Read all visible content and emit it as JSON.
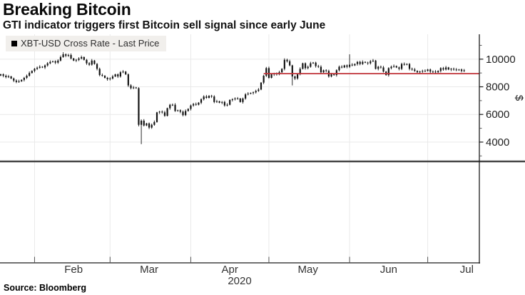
{
  "header": {
    "title": "Breaking Bitcoin",
    "subtitle": "GTI indicator triggers first Bitcoin sell signal since early June"
  },
  "legend": {
    "label": "XBT-USD Cross Rate - Last Price",
    "swatch_color": "#000000"
  },
  "footer": {
    "source": "Source: Bloomberg"
  },
  "chart_data": {
    "type": "candlestick",
    "title": "XBT-USD Cross Rate - Last Price",
    "currency_label": "$",
    "year_label": "2020",
    "interval": "daily",
    "start_date": "2020-01-19",
    "ylim": [
      2600,
      11800
    ],
    "y_major_ticks": [
      4000,
      6000,
      8000,
      10000
    ],
    "y_minor_ticks": [
      3000,
      5000,
      7000,
      9000,
      11000
    ],
    "x_months": [
      {
        "label": "Feb",
        "day": 13
      },
      {
        "label": "Mar",
        "day": 42
      },
      {
        "label": "Apr",
        "day": 73
      },
      {
        "label": "May",
        "day": 103
      },
      {
        "label": "Jun",
        "day": 134
      },
      {
        "label": "Jul",
        "day": 164
      }
    ],
    "grid": true,
    "legend_position": "top-left",
    "closes": [
      8900,
      8800,
      8700,
      8750,
      8600,
      8450,
      8350,
      8400,
      8500,
      8650,
      8800,
      9000,
      9150,
      9300,
      9380,
      9450,
      9400,
      9550,
      9700,
      9800,
      9850,
      9750,
      9900,
      10150,
      10350,
      10250,
      10300,
      10050,
      9900,
      9950,
      10050,
      10150,
      9950,
      9700,
      9600,
      9900,
      9650,
      9300,
      8850,
      8800,
      8650,
      8550,
      8600,
      8750,
      8900,
      8750,
      9050,
      9100,
      8900,
      8100,
      7900,
      7950,
      7900,
      5250,
      5550,
      5200,
      5350,
      5050,
      5250,
      5450,
      6150,
      6200,
      6150,
      5900,
      6450,
      6700,
      6700,
      6250,
      6300,
      6200,
      5950,
      6250,
      6400,
      6650,
      6750,
      6700,
      6850,
      7100,
      7300,
      7200,
      7350,
      7300,
      6900,
      6950,
      6850,
      6900,
      6650,
      6700,
      7050,
      7100,
      7150,
      7150,
      6900,
      7150,
      7450,
      7500,
      7550,
      7600,
      7700,
      7800,
      8300,
      8800,
      9350,
      8650,
      8900,
      8950,
      8900,
      9050,
      9300,
      9950,
      9850,
      9550,
      8750,
      8600,
      8900,
      9300,
      9700,
      9350,
      9450,
      9700,
      9750,
      9500,
      9450,
      9050,
      9200,
      9150,
      8750,
      8900,
      8850,
      9200,
      9450,
      9400,
      9550,
      9450,
      9600,
      9550,
      9650,
      9800,
      9650,
      9800,
      9750,
      9700,
      9850,
      9900,
      9300,
      9450,
      9400,
      9100,
      8850,
      9350,
      9450,
      9500,
      9400,
      9300,
      9650,
      9600,
      9650,
      9300,
      9250,
      9150,
      9050,
      9100,
      9150,
      9150,
      9250,
      9100,
      9100,
      9050,
      9150,
      9350,
      9250,
      9400,
      9250,
      9300,
      9250,
      9200,
      9250,
      9150,
      9200
    ],
    "wick_overrides": {
      "24": {
        "high": 10500
      },
      "54": {
        "low": 3850
      },
      "109": {
        "high": 10060
      },
      "112": {
        "low": 8100
      },
      "134": {
        "high": 10350
      }
    },
    "signal_line": {
      "value": 8950,
      "start_day": 101,
      "color": "#c1343a"
    },
    "colors": {
      "candle": "#141414",
      "grid": "#e9e9e9",
      "axis": "#1a1a1a",
      "tick": "#555555",
      "separator": "#474747",
      "label": "#222222"
    }
  }
}
